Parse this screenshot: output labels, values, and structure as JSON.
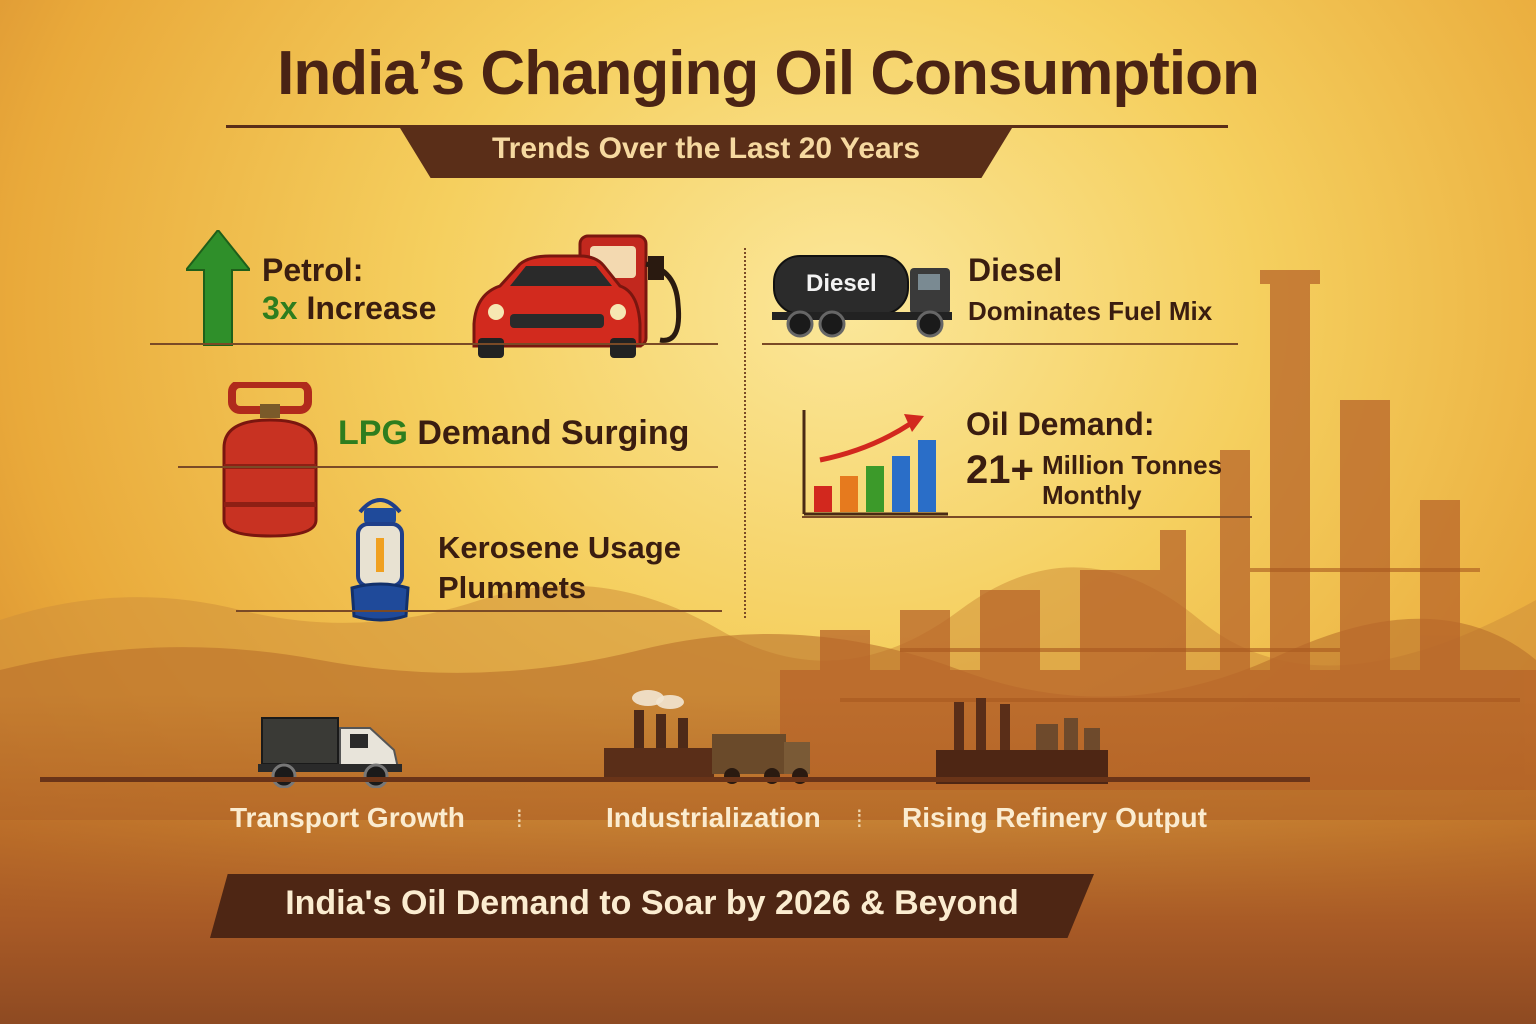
{
  "title": "India’s Changing Oil Consumption",
  "subtitle": "Trends Over the Last 20 Years",
  "petrol": {
    "label": "Petrol:",
    "value": "3x",
    "text": "Increase"
  },
  "diesel": {
    "truck_label": "Diesel",
    "title": "Diesel",
    "text": "Dominates Fuel Mix"
  },
  "lpg": {
    "highlight": "LPG",
    "text": "Demand Surging"
  },
  "oil_demand": {
    "label": "Oil Demand:",
    "value": "21+",
    "line1": "Million Tonnes",
    "line2": "Monthly"
  },
  "kerosene": {
    "line1": "Kerosene Usage",
    "line2": "Plummets"
  },
  "drivers": {
    "transport": "Transport Growth",
    "industrialization": "Industrialization",
    "refinery": "Rising Refinery Output",
    "separator": "⁞"
  },
  "banner": "India's Oil Demand to Soar by 2026 & Beyond",
  "colors": {
    "title": "#4a2314",
    "accent_green": "#2e7d1e",
    "ribbon": "#5a2e18",
    "banner": "#4e2614"
  },
  "icons": [
    "up-arrow-icon",
    "car-icon",
    "fuel-pump-icon",
    "diesel-truck-icon",
    "lpg-cylinder-icon",
    "bar-chart-icon",
    "lantern-icon",
    "truck-icon",
    "factory-icon",
    "refinery-icon"
  ]
}
